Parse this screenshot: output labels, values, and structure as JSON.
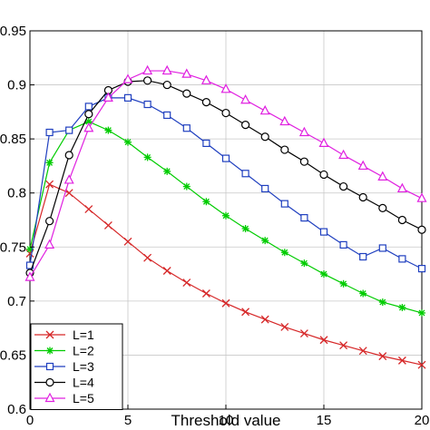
{
  "chart_data": {
    "type": "line",
    "title": "",
    "xlabel": "Threshold value",
    "ylabel": "",
    "xlim": [
      0,
      20
    ],
    "ylim": [
      0.6,
      0.95
    ],
    "xticks": [
      0,
      5,
      10,
      15,
      20
    ],
    "xtick_labels": [
      "0",
      "5",
      "10",
      "15",
      "20"
    ],
    "yticks": [
      0.6,
      0.65,
      0.7,
      0.75,
      0.8,
      0.85,
      0.9,
      0.95
    ],
    "ytick_labels": [
      "0.6",
      "0.65",
      "0.7",
      "0.75",
      "0.8",
      "0.85",
      "0.9",
      "0.95"
    ],
    "grid": true,
    "legend_position": "bottom-left",
    "x": [
      0,
      1,
      2,
      3,
      4,
      5,
      6,
      7,
      8,
      9,
      10,
      11,
      12,
      13,
      14,
      15,
      16,
      17,
      18,
      19,
      20
    ],
    "series": [
      {
        "name": "L=1",
        "color": "#d62728",
        "marker": "x",
        "values": [
          0.744,
          0.808,
          0.8,
          0.785,
          0.77,
          0.755,
          0.74,
          0.728,
          0.717,
          0.707,
          0.698,
          0.69,
          0.683,
          0.676,
          0.67,
          0.664,
          0.659,
          0.654,
          0.649,
          0.645,
          0.641
        ]
      },
      {
        "name": "L=2",
        "color": "#00cc00",
        "marker": "star",
        "values": [
          0.748,
          0.828,
          0.858,
          0.866,
          0.858,
          0.847,
          0.833,
          0.82,
          0.806,
          0.792,
          0.779,
          0.767,
          0.756,
          0.745,
          0.735,
          0.725,
          0.716,
          0.707,
          0.699,
          0.694,
          0.689
        ]
      },
      {
        "name": "L=3",
        "color": "#1f3fbf",
        "marker": "square",
        "values": [
          0.733,
          0.856,
          0.858,
          0.88,
          0.888,
          0.888,
          0.882,
          0.872,
          0.86,
          0.846,
          0.832,
          0.818,
          0.804,
          0.79,
          0.777,
          0.764,
          0.752,
          0.741,
          0.749,
          0.739,
          0.73
        ]
      },
      {
        "name": "L=4",
        "color": "#000000",
        "marker": "circle",
        "values": [
          0.726,
          0.774,
          0.835,
          0.873,
          0.895,
          0.903,
          0.904,
          0.9,
          0.892,
          0.884,
          0.874,
          0.863,
          0.852,
          0.84,
          0.829,
          0.817,
          0.806,
          0.796,
          0.786,
          0.775,
          0.766
        ]
      },
      {
        "name": "L=5",
        "color": "#e020e0",
        "marker": "triangle",
        "values": [
          0.722,
          0.752,
          0.812,
          0.86,
          0.888,
          0.905,
          0.913,
          0.913,
          0.91,
          0.904,
          0.896,
          0.886,
          0.876,
          0.866,
          0.856,
          0.846,
          0.835,
          0.825,
          0.815,
          0.804,
          0.795
        ]
      }
    ]
  }
}
